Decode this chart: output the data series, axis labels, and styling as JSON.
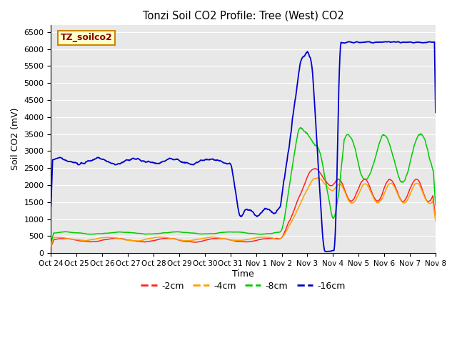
{
  "title": "Tonzi Soil CO2 Profile: Tree (West) CO2",
  "ylabel": "Soil CO2 (mV)",
  "xlabel": "Time",
  "ylim": [
    0,
    6700
  ],
  "yticks": [
    0,
    500,
    1000,
    1500,
    2000,
    2500,
    3000,
    3500,
    4000,
    4500,
    5000,
    5500,
    6000,
    6500
  ],
  "x_tick_labels": [
    "Oct 24",
    "Oct 25",
    "Oct 26",
    "Oct 27",
    "Oct 28",
    "Oct 29",
    "Oct 30",
    "Oct 31",
    "Nov 1",
    "Nov 2",
    "Nov 3",
    "Nov 4",
    "Nov 5",
    "Nov 6",
    "Nov 7",
    "Nov 8"
  ],
  "plot_bg": "#e8e8e8",
  "fig_bg": "#ffffff",
  "grid_color": "#ffffff",
  "legend_label": "TZ_soilco2",
  "legend_label_color": "#8b0000",
  "legend_box_bg": "#ffffcc",
  "legend_box_edge": "#cc8800",
  "series": {
    "2cm": {
      "color": "#ff2020",
      "label": "-2cm"
    },
    "4cm": {
      "color": "#ffa000",
      "label": "-4cm"
    },
    "8cm": {
      "color": "#00cc00",
      "label": "-8cm"
    },
    "16cm": {
      "color": "#0000cc",
      "label": "-16cm"
    }
  }
}
